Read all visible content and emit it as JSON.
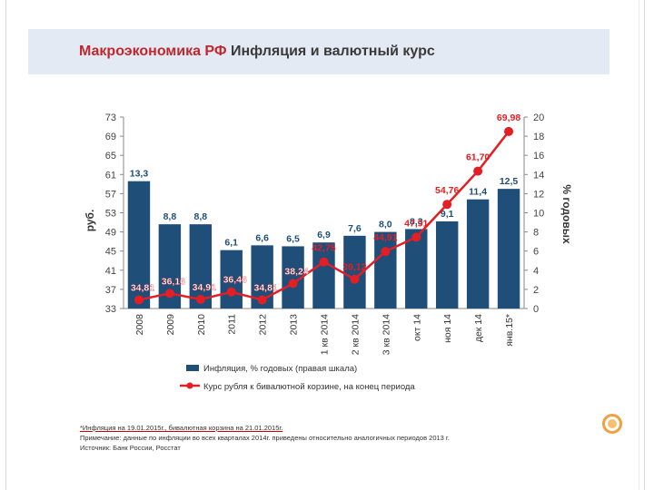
{
  "slide": {
    "title_prefix": "Макроэкономика РФ",
    "title_rest": " Инфляция и валютный курс"
  },
  "chart_data": {
    "type": "bar+line",
    "categories": [
      "2008",
      "2009",
      "2010",
      "2011",
      "2012",
      "2013",
      "1 кв 2014",
      "2 кв 2014",
      "3 кв 2014",
      "окт 14",
      "ноя 14",
      "дек 14",
      "янв.15*"
    ],
    "series": [
      {
        "name": "Инфляция, % годовых (правая шкала)",
        "kind": "bar",
        "axis": "right",
        "color": "#1f4e79",
        "values": [
          13.3,
          8.8,
          8.8,
          6.1,
          6.6,
          6.5,
          6.9,
          7.6,
          8.0,
          8.3,
          9.1,
          11.4,
          12.5
        ],
        "labels": [
          "13,3",
          "8,8",
          "8,8",
          "6,1",
          "6,6",
          "6,5",
          "6,9",
          "7,6",
          "8,0",
          "8,3",
          "9,1",
          "11,4",
          "12,5"
        ]
      },
      {
        "name": "Курс рубля к бивалютной корзине, на конец периода",
        "kind": "line",
        "axis": "left",
        "color": "#e31e24",
        "values": [
          34.81,
          36.16,
          34.91,
          36.46,
          34.81,
          38.24,
          42.75,
          39.12,
          44.91,
          47.91,
          54.76,
          61.7,
          69.98
        ],
        "labels": [
          "34,81",
          "36,16",
          "34,91",
          "36,46",
          "34,81",
          "38,24",
          "42,75",
          "39,12",
          "44,91",
          "47,91",
          "54,76",
          "61,70",
          "69,98"
        ]
      }
    ],
    "left_axis": {
      "label": "руб.",
      "min": 33,
      "max": 73,
      "ticks": [
        "33",
        "37",
        "41",
        "45",
        "49",
        "53",
        "57",
        "61",
        "65",
        "69",
        "73"
      ]
    },
    "right_axis": {
      "label": "% годовых",
      "min": 0,
      "max": 20,
      "ticks": [
        "0",
        "2",
        "4",
        "6",
        "8",
        "10",
        "12",
        "14",
        "16",
        "18",
        "20"
      ]
    },
    "legend": [
      {
        "label": "Инфляция, % годовых (правая шкала)",
        "type": "bar",
        "color": "#1f4e79"
      },
      {
        "label": "Курс рубля к бивалютной корзине, на конец периода",
        "type": "line",
        "color": "#e31e24"
      }
    ],
    "legend_position": "bottom"
  },
  "notes": {
    "line1": "*Инфляция на 19.01.2015г., бивалютная корзина на 21.01.2015г.",
    "line2": " Примечание: данные по инфляции во всех кварталах 2014г. приведены относительно аналогичных периодов 2013 г.",
    "line3": "Источник: Банк России, Росстат"
  }
}
